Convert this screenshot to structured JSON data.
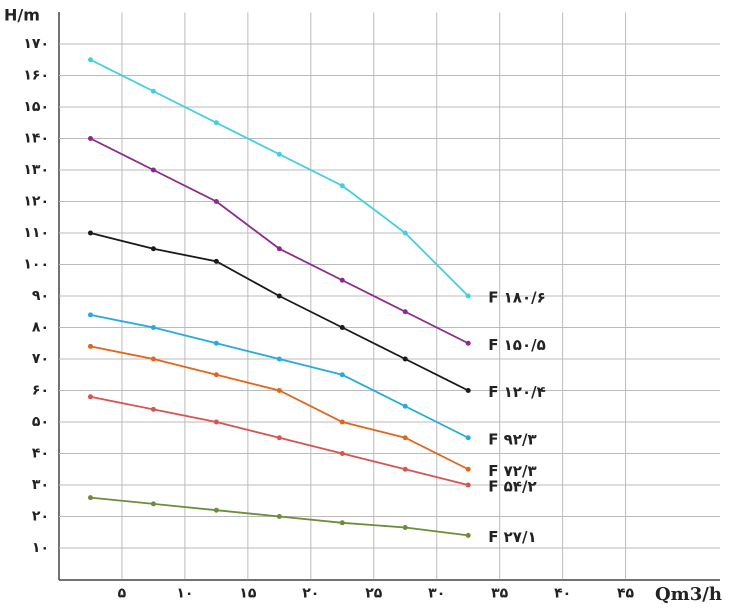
{
  "chart_data": {
    "type": "line",
    "y_label": "H/m",
    "x_label": "Qm3/h",
    "x": [
      2.5,
      7.5,
      12.5,
      17.5,
      22.5,
      27.5,
      32.5
    ],
    "xlim": [
      0,
      52.5
    ],
    "xticks": [
      {
        "value": 5,
        "label": "۵"
      },
      {
        "value": 10,
        "label": "۱۰"
      },
      {
        "value": 15,
        "label": "۱۵"
      },
      {
        "value": 20,
        "label": "۲۰"
      },
      {
        "value": 25,
        "label": "۲۵"
      },
      {
        "value": 30,
        "label": "۳۰"
      },
      {
        "value": 35,
        "label": "۳۵"
      },
      {
        "value": 40,
        "label": "۴۰"
      },
      {
        "value": 45,
        "label": "۴۵"
      }
    ],
    "ylim": [
      0,
      180
    ],
    "yticks": [
      {
        "value": 10,
        "label": "۱۰"
      },
      {
        "value": 20,
        "label": "۲۰"
      },
      {
        "value": 30,
        "label": "۳۰"
      },
      {
        "value": 40,
        "label": "۴۰"
      },
      {
        "value": 50,
        "label": "۵۰"
      },
      {
        "value": 60,
        "label": "۶۰"
      },
      {
        "value": 70,
        "label": "۷۰"
      },
      {
        "value": 80,
        "label": "۸۰"
      },
      {
        "value": 90,
        "label": "۹۰"
      },
      {
        "value": 100,
        "label": "۱۰۰"
      },
      {
        "value": 110,
        "label": "۱۱۰"
      },
      {
        "value": 120,
        "label": "۱۲۰"
      },
      {
        "value": 130,
        "label": "۱۳۰"
      },
      {
        "value": 140,
        "label": "۱۴۰"
      },
      {
        "value": 150,
        "label": "۱۵۰"
      },
      {
        "value": 160,
        "label": "۱۶۰"
      },
      {
        "value": 170,
        "label": "۱۷۰"
      }
    ],
    "grid": true,
    "series": [
      {
        "name": "F ۱۸۰/۶",
        "color": "#3fd0e0",
        "values": [
          165,
          155,
          145,
          135,
          125,
          110,
          90
        ]
      },
      {
        "name": "F ۱۵۰/۵",
        "color": "#8b2a8e",
        "values": [
          140,
          130,
          120,
          105,
          95,
          85,
          75
        ]
      },
      {
        "name": "F ۱۲۰/۴",
        "color": "#1a1a1a",
        "values": [
          110,
          105,
          101,
          90,
          80,
          70,
          60
        ]
      },
      {
        "name": "F ۹۲/۳",
        "color": "#27a9e1",
        "values": [
          84,
          80,
          75,
          70,
          65,
          55,
          45
        ]
      },
      {
        "name": "F ۷۲/۳",
        "color": "#e0661c",
        "values": [
          74,
          70,
          65,
          60,
          50,
          45,
          35
        ]
      },
      {
        "name": "F ۵۴/۲",
        "color": "#d9534f",
        "values": [
          58,
          54,
          50,
          45,
          40,
          35,
          30
        ]
      },
      {
        "name": "F ۲۷/۱",
        "color": "#6b8e3a",
        "values": [
          26,
          24,
          22,
          20,
          18,
          16.5,
          14
        ]
      }
    ]
  }
}
